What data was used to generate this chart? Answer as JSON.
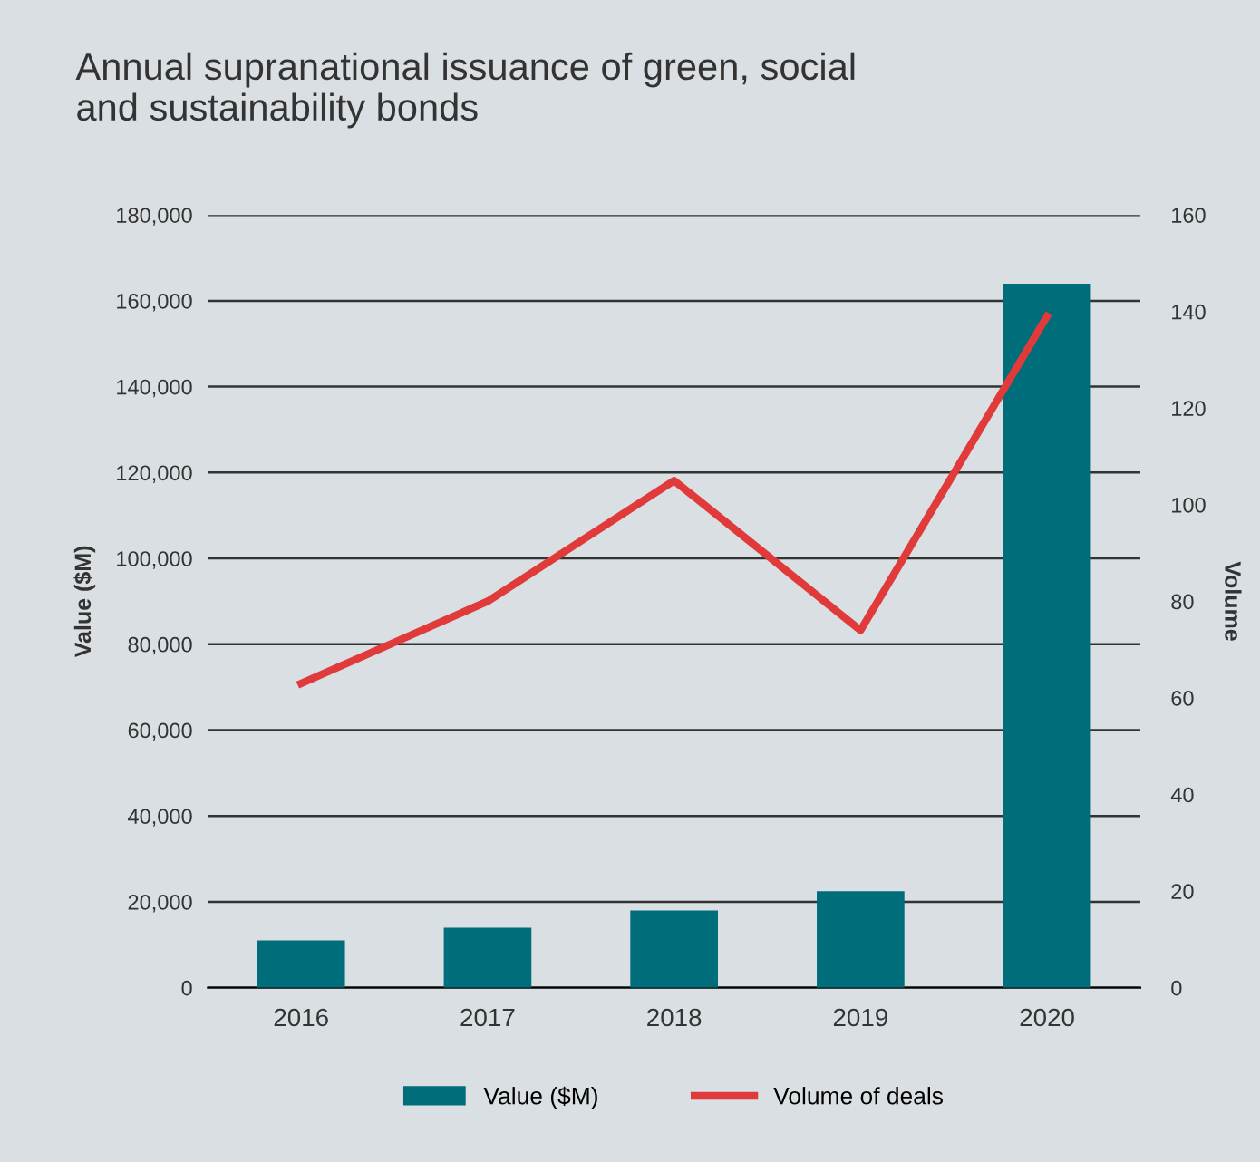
{
  "chart_data": {
    "type": "bar",
    "title": "Annual supranational issuance of green, social\nand sustainability bonds",
    "ylabel": "Value ($M)",
    "y2label": "Volume",
    "categories": [
      "2016",
      "2017",
      "2018",
      "2019",
      "2020"
    ],
    "series": [
      {
        "name": "Value ($M)",
        "color": "#006d7a",
        "values": [
          11000,
          14000,
          18000,
          22500,
          164000
        ]
      },
      {
        "name": "Volume of deals",
        "type": "line",
        "axis": "y2",
        "color": "#e03a3a",
        "values": [
          63,
          80,
          105,
          74,
          139
        ]
      }
    ],
    "ylim": [
      0,
      180000
    ],
    "yticks": [
      {
        "value": 0,
        "label": "0"
      },
      {
        "value": 20000,
        "label": "20,000"
      },
      {
        "value": 40000,
        "label": "40,000"
      },
      {
        "value": 60000,
        "label": "60,000"
      },
      {
        "value": 80000,
        "label": "80,000"
      },
      {
        "value": 100000,
        "label": "100,000"
      },
      {
        "value": 120000,
        "label": "120,000"
      },
      {
        "value": 140000,
        "label": "140,000"
      },
      {
        "value": 160000,
        "label": "160,000"
      },
      {
        "value": 180000,
        "label": "180,000"
      }
    ],
    "y2lim": [
      0,
      160
    ],
    "y2ticks": [
      0,
      20,
      40,
      60,
      80,
      100,
      120,
      140,
      160
    ],
    "grid": "y",
    "legend": "bottom",
    "marker": "none",
    "line_style": "solid"
  }
}
